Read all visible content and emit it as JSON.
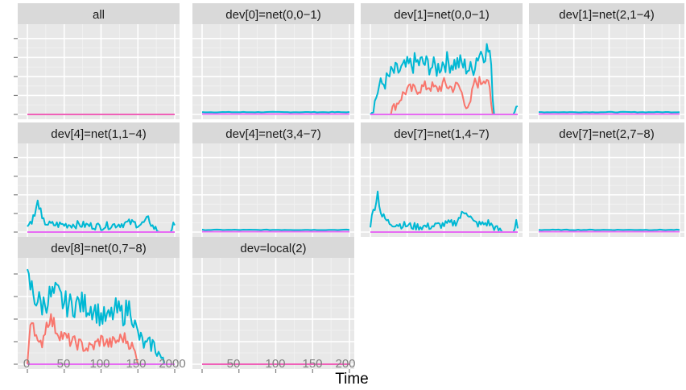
{
  "chart_data": {
    "type": "line",
    "layout": "facet-grid",
    "xlabel": "Time",
    "ylabel": "",
    "xlim": [
      0,
      200
    ],
    "ylim": [
      0,
      4.5
    ],
    "x_ticks": [
      0,
      50,
      100,
      150,
      200
    ],
    "x_tick_labels": [
      "0",
      "50",
      "100",
      "150",
      "200"
    ],
    "x_tick_labels_joined": [
      "0",
      "50",
      "100",
      "150",
      "2000",
      "50",
      "100",
      "150",
      "200"
    ],
    "y_ticks": [
      0,
      1,
      2,
      3,
      4
    ],
    "grid": true,
    "legend": "none",
    "series_colors": {
      "red": "#F8766D",
      "blue": "#00B8D4",
      "magenta": "#E76BF3",
      "base_pink": "#F060B8"
    },
    "panels": [
      {
        "label": "all",
        "pattern": "flat_pink"
      },
      {
        "label": "dev[0]=net(0,0−1)",
        "pattern": "flat_low"
      },
      {
        "label": "dev[1]=net(0,0−1)",
        "pattern": "busy_high",
        "blue_knots": [
          [
            0,
            0
          ],
          [
            5,
            0.5
          ],
          [
            12,
            1.5
          ],
          [
            20,
            1.7
          ],
          [
            30,
            2.2
          ],
          [
            40,
            2.3
          ],
          [
            50,
            2.5
          ],
          [
            60,
            2.7
          ],
          [
            70,
            2.7
          ],
          [
            80,
            2.6
          ],
          [
            90,
            2.4
          ],
          [
            100,
            2.8
          ],
          [
            110,
            2.7
          ],
          [
            120,
            2.7
          ],
          [
            130,
            2.5
          ],
          [
            138,
            2.3
          ],
          [
            145,
            3.1
          ],
          [
            150,
            3.3
          ],
          [
            158,
            3.4
          ],
          [
            162,
            3.3
          ],
          [
            168,
            0
          ],
          [
            175,
            0
          ],
          [
            185,
            0
          ],
          [
            195,
            0
          ],
          [
            198,
            0.6
          ],
          [
            200,
            0.5
          ]
        ],
        "red_knots": [
          [
            0,
            0
          ],
          [
            25,
            0
          ],
          [
            30,
            0.3
          ],
          [
            35,
            0.5
          ],
          [
            40,
            0.8
          ],
          [
            45,
            1.1
          ],
          [
            50,
            1.3
          ],
          [
            60,
            1.3
          ],
          [
            70,
            1.4
          ],
          [
            80,
            1.5
          ],
          [
            90,
            1.3
          ],
          [
            100,
            1.6
          ],
          [
            110,
            1.4
          ],
          [
            120,
            1.5
          ],
          [
            130,
            0.5
          ],
          [
            135,
            0.3
          ],
          [
            140,
            1.6
          ],
          [
            145,
            1.7
          ],
          [
            150,
            1.7
          ],
          [
            155,
            2.0
          ],
          [
            160,
            1.9
          ],
          [
            165,
            0
          ],
          [
            200,
            0
          ]
        ]
      },
      {
        "label": "dev[1]=net(2,1−4)",
        "pattern": "flat_low"
      },
      {
        "label": "dev[4]=net(1,1−4)",
        "pattern": "spiky_low",
        "blue_knots": [
          [
            0,
            0.3
          ],
          [
            10,
            0.9
          ],
          [
            15,
            1.7
          ],
          [
            20,
            0.6
          ],
          [
            30,
            0.4
          ],
          [
            50,
            0.4
          ],
          [
            70,
            0.4
          ],
          [
            100,
            0.3
          ],
          [
            120,
            0.4
          ],
          [
            140,
            0.5
          ],
          [
            155,
            0.4
          ],
          [
            165,
            0.7
          ],
          [
            170,
            0.3
          ],
          [
            180,
            0
          ],
          [
            195,
            0
          ],
          [
            198,
            0.6
          ],
          [
            200,
            0.2
          ]
        ],
        "red_knots": []
      },
      {
        "label": "dev[4]=net(3,4−7)",
        "pattern": "flat_low"
      },
      {
        "label": "dev[7]=net(1,4−7)",
        "pattern": "spiky_low",
        "blue_knots": [
          [
            0,
            0.4
          ],
          [
            5,
            1.3
          ],
          [
            10,
            2.1
          ],
          [
            15,
            0.9
          ],
          [
            25,
            0.5
          ],
          [
            40,
            0.4
          ],
          [
            60,
            0.3
          ],
          [
            80,
            0.3
          ],
          [
            100,
            0.4
          ],
          [
            115,
            0.5
          ],
          [
            130,
            1.2
          ],
          [
            140,
            0.5
          ],
          [
            150,
            0.4
          ],
          [
            160,
            0.5
          ],
          [
            170,
            0.2
          ],
          [
            180,
            0
          ],
          [
            195,
            0
          ],
          [
            198,
            0.6
          ],
          [
            200,
            0.3
          ]
        ],
        "red_knots": []
      },
      {
        "label": "dev[7]=net(2,7−8)",
        "pattern": "flat_low"
      },
      {
        "label": "dev[8]=net(0,7−8)",
        "pattern": "busy_high",
        "blue_knots": [
          [
            0,
            3.7
          ],
          [
            5,
            3.4
          ],
          [
            10,
            3.0
          ],
          [
            20,
            2.6
          ],
          [
            30,
            3.0
          ],
          [
            40,
            3.1
          ],
          [
            50,
            2.7
          ],
          [
            60,
            2.6
          ],
          [
            70,
            2.7
          ],
          [
            80,
            2.6
          ],
          [
            90,
            2.5
          ],
          [
            100,
            2.1
          ],
          [
            110,
            2.0
          ],
          [
            120,
            2.4
          ],
          [
            130,
            2.2
          ],
          [
            140,
            2.6
          ],
          [
            145,
            1.8
          ],
          [
            150,
            1.3
          ],
          [
            160,
            0.8
          ],
          [
            170,
            0.9
          ],
          [
            180,
            0.4
          ],
          [
            185,
            0
          ],
          [
            200,
            0
          ]
        ],
        "red_knots": [
          [
            0,
            0
          ],
          [
            5,
            2.3
          ],
          [
            10,
            1.6
          ],
          [
            15,
            0.7
          ],
          [
            20,
            1.0
          ],
          [
            25,
            1.7
          ],
          [
            30,
            2.1
          ],
          [
            40,
            1.5
          ],
          [
            50,
            1.2
          ],
          [
            60,
            1.0
          ],
          [
            70,
            0.9
          ],
          [
            80,
            0.7
          ],
          [
            90,
            0.8
          ],
          [
            100,
            1.1
          ],
          [
            110,
            0.9
          ],
          [
            120,
            1.0
          ],
          [
            130,
            1.2
          ],
          [
            140,
            0.9
          ],
          [
            145,
            0.6
          ],
          [
            150,
            0
          ],
          [
            200,
            0
          ]
        ]
      },
      {
        "label": "dev=local(2)",
        "pattern": "flat_pink"
      }
    ]
  }
}
